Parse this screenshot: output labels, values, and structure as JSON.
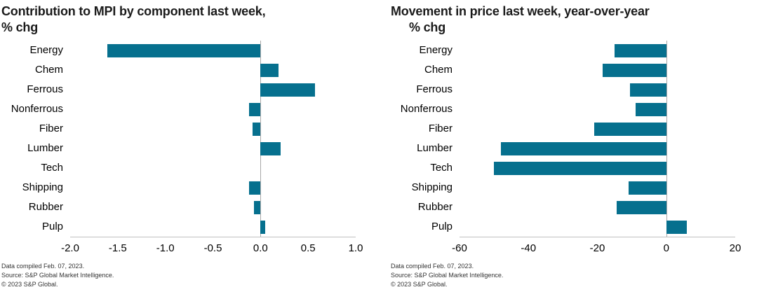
{
  "colors": {
    "bar": "#06708e",
    "axis_line": "#bfbfbf",
    "zero_line": "#a8a8a8",
    "background": "#ffffff"
  },
  "footer_lines": [
    "Data compiled Feb. 07, 2023.",
    "Source: S&P Global Market Intelligence.",
    "© 2023 S&P Global."
  ],
  "chart_data": [
    {
      "type": "bar",
      "orientation": "horizontal",
      "title": "Contribution to MPI by component last week, % chg",
      "title_lines": [
        "Contribution to MPI by component last week,",
        "% chg"
      ],
      "categories": [
        "Energy",
        "Chem",
        "Ferrous",
        "Nonferrous",
        "Fiber",
        "Lumber",
        "Tech",
        "Shipping",
        "Rubber",
        "Pulp"
      ],
      "values": [
        -1.61,
        0.19,
        0.57,
        -0.12,
        -0.08,
        0.21,
        0.0,
        -0.12,
        -0.07,
        0.05
      ],
      "xlabel": "",
      "ylabel": "",
      "xlim": [
        -2.0,
        1.0
      ],
      "xticks": [
        -2.0,
        -1.5,
        -1.0,
        -0.5,
        0.0,
        0.5,
        1.0
      ],
      "xtick_labels": [
        "-2.0",
        "-1.5",
        "-1.0",
        "-0.5",
        "0.0",
        "0.5",
        "1.0"
      ],
      "grid": false,
      "legend": "none"
    },
    {
      "type": "bar",
      "orientation": "horizontal",
      "title": "Movement in price last week, year-over-year % chg",
      "title_lines": [
        "Movement in price last week, year-over-year",
        "% chg"
      ],
      "categories": [
        "Energy",
        "Chem",
        "Ferrous",
        "Nonferrous",
        "Fiber",
        "Lumber",
        "Tech",
        "Shipping",
        "Rubber",
        "Pulp"
      ],
      "values": [
        -15,
        -18.5,
        -10.5,
        -9,
        -21,
        -48,
        -50,
        -11,
        -14.5,
        6
      ],
      "xlabel": "",
      "ylabel": "",
      "xlim": [
        -60,
        20
      ],
      "xticks": [
        -60,
        -40,
        -20,
        0,
        20
      ],
      "xtick_labels": [
        "-60",
        "-40",
        "-20",
        "0",
        "20"
      ],
      "grid": false,
      "legend": "none"
    }
  ]
}
